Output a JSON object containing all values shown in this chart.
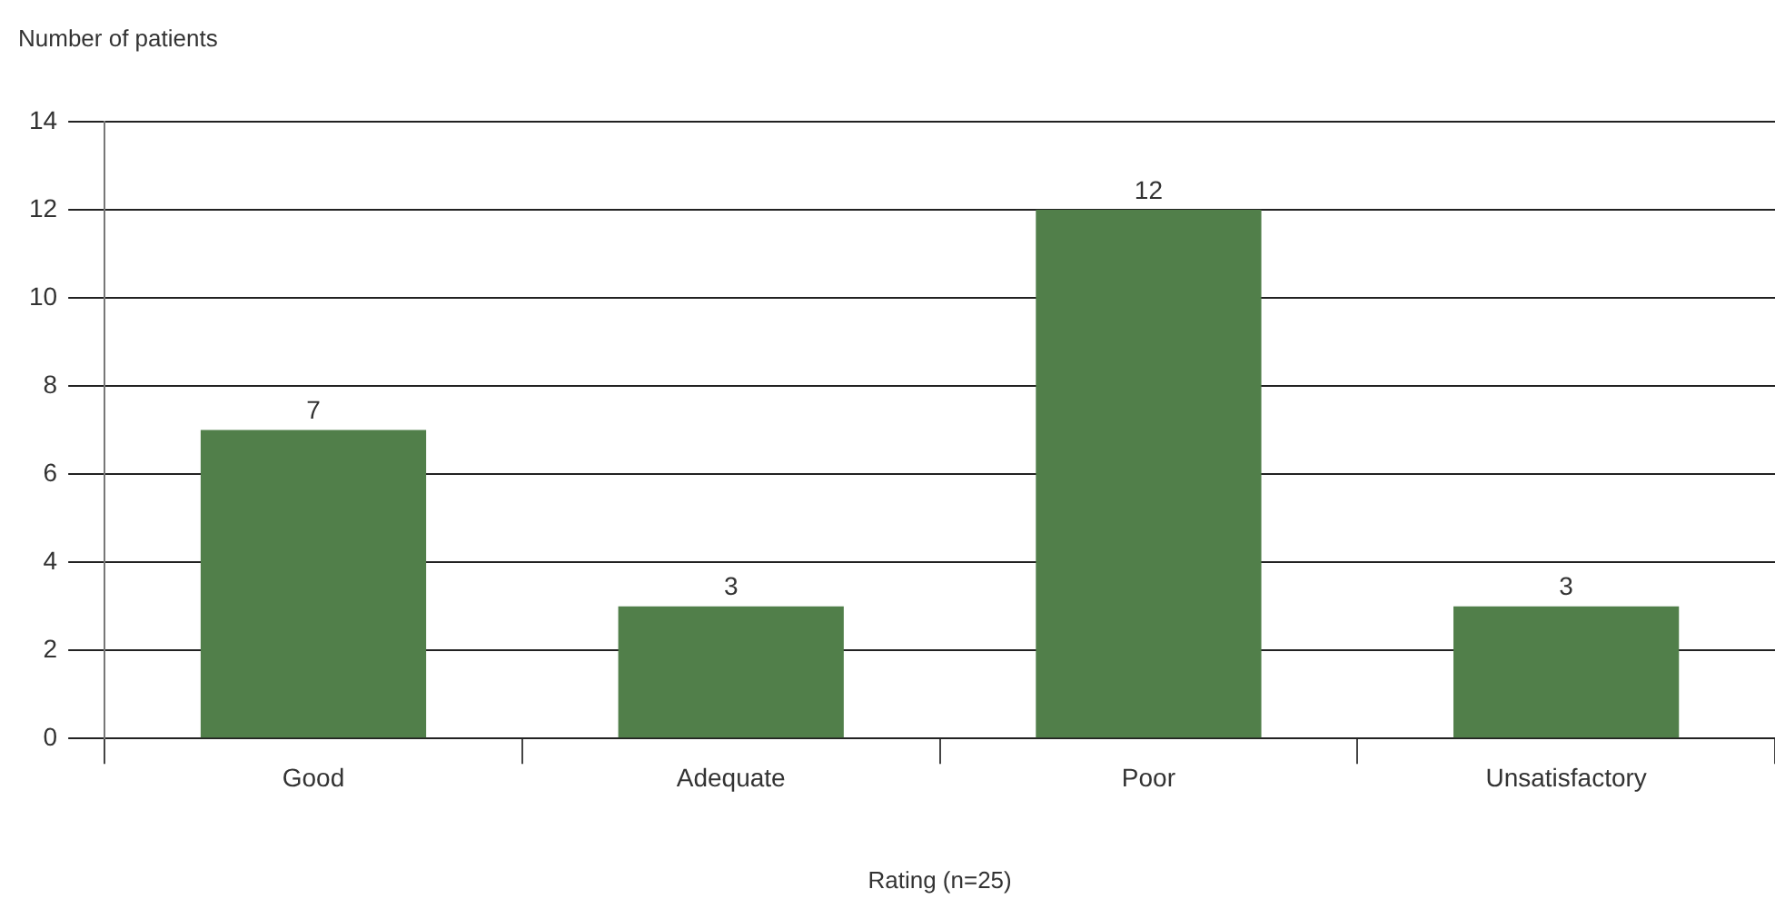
{
  "chart_data": {
    "type": "bar",
    "ylabel": "Number of patients",
    "xlabel": "Rating (n=25)",
    "categories": [
      "Good",
      "Adequate",
      "Poor",
      "Unsatisfactory"
    ],
    "values": [
      7,
      3,
      12,
      3
    ],
    "color": "#517f4a",
    "ylim": [
      0,
      14
    ],
    "yticks": [
      0,
      2,
      4,
      6,
      8,
      10,
      12,
      14
    ],
    "grid": "y",
    "data_labels": true
  }
}
